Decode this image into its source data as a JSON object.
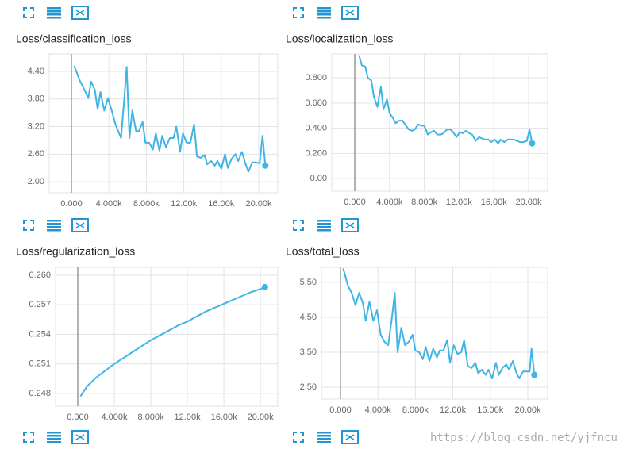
{
  "chart_data": [
    {
      "type": "line",
      "title": "Loss/classification_loss",
      "x": [
        300,
        900,
        1500,
        1800,
        2100,
        2500,
        2800,
        3100,
        3500,
        3900,
        4300,
        4700,
        5000,
        5300,
        5600,
        5900,
        6200,
        6500,
        6900,
        7200,
        7600,
        7900,
        8300,
        8700,
        9000,
        9400,
        9700,
        10100,
        10500,
        10900,
        11200,
        11600,
        11900,
        12300,
        12700,
        13100,
        13400,
        13800,
        14200,
        14500,
        14900,
        15300,
        15600,
        16000,
        16400,
        16700,
        17100,
        17500,
        17800,
        18200,
        18600,
        18900,
        19300,
        19700,
        20100,
        20400,
        20700
      ],
      "series": [
        {
          "color": "#40b4e5",
          "values": [
            4.52,
            4.2,
            3.95,
            3.82,
            4.18,
            4.0,
            3.58,
            3.95,
            3.55,
            3.82,
            3.55,
            3.25,
            3.1,
            2.95,
            3.7,
            4.5,
            2.95,
            3.55,
            3.1,
            3.1,
            3.3,
            2.85,
            2.85,
            2.7,
            3.05,
            2.68,
            3.0,
            2.75,
            2.95,
            2.95,
            3.2,
            2.65,
            3.05,
            2.85,
            2.85,
            3.25,
            2.55,
            2.52,
            2.58,
            2.38,
            2.45,
            2.35,
            2.45,
            2.28,
            2.6,
            2.3,
            2.5,
            2.6,
            2.45,
            2.65,
            2.38,
            2.22,
            2.42,
            2.42,
            2.4,
            3.0,
            2.35
          ]
        }
      ],
      "xlim": [
        -2370,
        22030
      ],
      "ylim": [
        1.76,
        4.78
      ],
      "xticks": [
        {
          "value": 0,
          "label": "0.000"
        },
        {
          "value": 4000,
          "label": "4.000k"
        },
        {
          "value": 8000,
          "label": "8.000k"
        },
        {
          "value": 12000,
          "label": "12.00k"
        },
        {
          "value": 16000,
          "label": "16.00k"
        },
        {
          "value": 20000,
          "label": "20.00k"
        }
      ],
      "yticks": [
        {
          "value": 2.0,
          "label": "2.00"
        },
        {
          "value": 2.6,
          "label": "2.60"
        },
        {
          "value": 3.2,
          "label": "3.20"
        },
        {
          "value": 3.8,
          "label": "3.80"
        },
        {
          "value": 4.4,
          "label": "4.40"
        }
      ],
      "grid": true
    },
    {
      "type": "line",
      "title": "Loss/localization_loss",
      "x": [
        500,
        800,
        1200,
        1500,
        1900,
        2200,
        2600,
        3000,
        3300,
        3700,
        4000,
        4400,
        4700,
        5100,
        5500,
        5800,
        6200,
        6600,
        6900,
        7300,
        7700,
        8000,
        8400,
        8800,
        9100,
        9500,
        9900,
        10200,
        10600,
        11000,
        11300,
        11700,
        12100,
        12400,
        12800,
        13200,
        13500,
        13900,
        14300,
        14600,
        15000,
        15400,
        15700,
        16100,
        16500,
        16800,
        17200,
        17600,
        17900,
        18300,
        18700,
        19000,
        19400,
        19800,
        20100,
        20400
      ],
      "series": [
        {
          "color": "#40b4e5",
          "values": [
            0.98,
            0.9,
            0.89,
            0.8,
            0.78,
            0.65,
            0.57,
            0.73,
            0.55,
            0.63,
            0.52,
            0.48,
            0.44,
            0.46,
            0.46,
            0.43,
            0.39,
            0.38,
            0.39,
            0.43,
            0.42,
            0.42,
            0.35,
            0.37,
            0.38,
            0.35,
            0.35,
            0.36,
            0.39,
            0.39,
            0.37,
            0.33,
            0.37,
            0.36,
            0.38,
            0.36,
            0.35,
            0.3,
            0.33,
            0.32,
            0.31,
            0.31,
            0.29,
            0.31,
            0.28,
            0.31,
            0.29,
            0.31,
            0.31,
            0.31,
            0.3,
            0.29,
            0.29,
            0.3,
            0.39,
            0.28
          ]
        }
      ],
      "xlim": [
        -2650,
        22190
      ],
      "ylim": [
        -0.1,
        0.99
      ],
      "xticks": [
        {
          "value": 0,
          "label": "0.000"
        },
        {
          "value": 4000,
          "label": "4.000k"
        },
        {
          "value": 8000,
          "label": "8.000k"
        },
        {
          "value": 12000,
          "label": "12.00k"
        },
        {
          "value": 16000,
          "label": "16.00k"
        },
        {
          "value": 20000,
          "label": "20.00k"
        }
      ],
      "yticks": [
        {
          "value": 0,
          "label": "0.00"
        },
        {
          "value": 0.2,
          "label": "0.200"
        },
        {
          "value": 0.4,
          "label": "0.400"
        },
        {
          "value": 0.6,
          "label": "0.600"
        },
        {
          "value": 0.8,
          "label": "0.800"
        }
      ],
      "grid": true
    },
    {
      "type": "line",
      "title": "Loss/regularization_loss",
      "x": [
        300,
        1000,
        2000,
        3000,
        4000,
        5000,
        6000,
        7000,
        8000,
        9000,
        10000,
        11000,
        12000,
        13000,
        14000,
        15000,
        16000,
        17000,
        18000,
        19000,
        20000,
        20500
      ],
      "series": [
        {
          "color": "#40b4e5",
          "values": [
            0.2477,
            0.2487,
            0.2496,
            0.2503,
            0.251,
            0.2516,
            0.2522,
            0.2528,
            0.2534,
            0.2539,
            0.2544,
            0.2549,
            0.2553,
            0.2558,
            0.2563,
            0.2567,
            0.2571,
            0.2575,
            0.2579,
            0.2583,
            0.2586,
            0.2588
          ]
        }
      ],
      "xlim": [
        -2430,
        21900
      ],
      "ylim": [
        0.2467,
        0.2608
      ],
      "xticks": [
        {
          "value": 0,
          "label": "0.000"
        },
        {
          "value": 4000,
          "label": "4.000k"
        },
        {
          "value": 8000,
          "label": "8.000k"
        },
        {
          "value": 12000,
          "label": "12.00k"
        },
        {
          "value": 16000,
          "label": "16.00k"
        },
        {
          "value": 20000,
          "label": "20.00k"
        }
      ],
      "yticks": [
        0.248,
        0.251,
        0.254,
        0.257,
        {
          "value": 0.26,
          "label": "0.260"
        }
      ],
      "grid": true
    },
    {
      "type": "line",
      "title": "Loss/total_loss",
      "x": [
        300,
        800,
        1200,
        1600,
        2000,
        2400,
        2700,
        3100,
        3500,
        3900,
        4300,
        4700,
        5100,
        5500,
        5800,
        6100,
        6500,
        6900,
        7300,
        7700,
        8000,
        8400,
        8800,
        9100,
        9500,
        9900,
        10300,
        10600,
        11000,
        11400,
        11700,
        12100,
        12500,
        12900,
        13200,
        13600,
        14000,
        14400,
        14700,
        15100,
        15500,
        15800,
        16200,
        16600,
        16900,
        17300,
        17700,
        18000,
        18400,
        18800,
        19100,
        19500,
        19900,
        20200,
        20400,
        20700
      ],
      "series": [
        {
          "color": "#40b4e5",
          "values": [
            5.9,
            5.4,
            5.2,
            4.85,
            5.2,
            4.9,
            4.4,
            4.95,
            4.4,
            4.7,
            4.0,
            3.8,
            3.7,
            4.5,
            5.2,
            3.5,
            4.2,
            3.7,
            3.8,
            4.0,
            3.55,
            3.5,
            3.3,
            3.65,
            3.25,
            3.6,
            3.35,
            3.55,
            3.55,
            3.85,
            3.2,
            3.7,
            3.45,
            3.5,
            3.85,
            3.1,
            3.05,
            3.2,
            2.9,
            3.0,
            2.85,
            3.0,
            2.75,
            3.2,
            2.85,
            3.05,
            3.15,
            3.0,
            3.25,
            2.9,
            2.75,
            2.95,
            2.95,
            2.95,
            3.6,
            2.85
          ]
        }
      ],
      "xlim": [
        -2030,
        22120
      ],
      "ylim": [
        2.16,
        5.93
      ],
      "xticks": [
        {
          "value": 0,
          "label": "0.000"
        },
        {
          "value": 4000,
          "label": "4.000k"
        },
        {
          "value": 8000,
          "label": "8.000k"
        },
        {
          "value": 12000,
          "label": "12.00k"
        },
        {
          "value": 16000,
          "label": "16.00k"
        },
        {
          "value": 20000,
          "label": "20.00k"
        }
      ],
      "yticks": [
        {
          "value": 2.5,
          "label": "2.50"
        },
        {
          "value": 3.5,
          "label": "3.50"
        },
        {
          "value": 4.5,
          "label": "4.50"
        },
        {
          "value": 5.5,
          "label": "5.50"
        }
      ],
      "grid": true
    }
  ],
  "watermark": "https://blog.csdn.net/yjfncu"
}
